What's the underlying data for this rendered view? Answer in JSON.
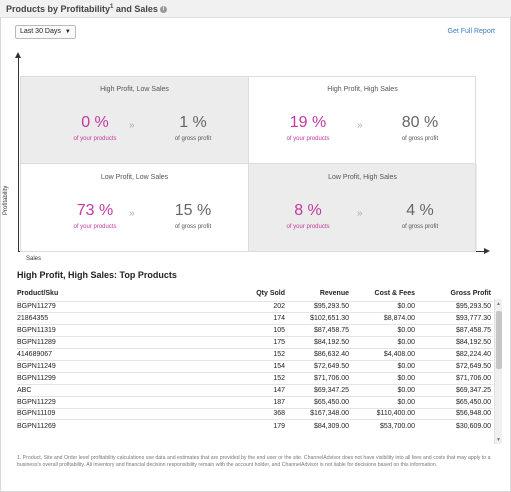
{
  "header": {
    "title_part1": "Products by Profitability",
    "title_sup": "1",
    "title_part2": " and Sales",
    "info_icon": "info-icon"
  },
  "controls": {
    "date_range": "Last 30 Days",
    "full_report_link": "Get Full Report"
  },
  "axes": {
    "y_label": "Profitability",
    "x_label": "Sales"
  },
  "quadrants": [
    {
      "title": "High Profit, Low Sales",
      "products_pct": "0 %",
      "products_label": "of your products",
      "profit_pct": "1 %",
      "profit_label": "of gross profit"
    },
    {
      "title": "High Profit, High Sales",
      "products_pct": "19 %",
      "products_label": "of your products",
      "profit_pct": "80 %",
      "profit_label": "of gross profit"
    },
    {
      "title": "Low Profit, Low Sales",
      "products_pct": "73 %",
      "products_label": "of your products",
      "profit_pct": "15 %",
      "profit_label": "of gross profit"
    },
    {
      "title": "Low Profit, High Sales",
      "products_pct": "8 %",
      "products_label": "of your products",
      "profit_pct": "4 %",
      "profit_label": "of gross profit"
    }
  ],
  "arrow_glyph": "»",
  "top_products": {
    "title": "High Profit, High Sales: Top Products",
    "columns": [
      "Product/Sku",
      "Qty Sold",
      "Revenue",
      "Cost & Fees",
      "Gross Profit"
    ],
    "rows": [
      [
        "BGPN11279",
        "202",
        "$95,293.50",
        "$0.00",
        "$95,293.50"
      ],
      [
        "21864355",
        "174",
        "$102,651.30",
        "$8,874.00",
        "$93,777.30"
      ],
      [
        "BGPN11319",
        "105",
        "$87,458.75",
        "$0.00",
        "$87,458.75"
      ],
      [
        "BGPN11289",
        "175",
        "$84,192.50",
        "$0.00",
        "$84,192.50"
      ],
      [
        "414689067",
        "152",
        "$86,632.40",
        "$4,408.00",
        "$82,224.40"
      ],
      [
        "BGPN11249",
        "154",
        "$72,649.50",
        "$0.00",
        "$72,649.50"
      ],
      [
        "BGPN11299",
        "152",
        "$71,706.00",
        "$0.00",
        "$71,706.00"
      ],
      [
        "ABC",
        "147",
        "$69,347.25",
        "$0.00",
        "$69,347.25"
      ],
      [
        "BGPN11229",
        "187",
        "$65,450.00",
        "$0.00",
        "$65,450.00"
      ],
      [
        "BGPN11109",
        "368",
        "$167,348.00",
        "$110,400.00",
        "$56,948.00"
      ],
      [
        "BGPN11269",
        "179",
        "$84,309.00",
        "$53,700.00",
        "$30,609.00"
      ]
    ]
  },
  "footnote": "1. Product, Site and Order level profitability calculations use data and estimates that are provided by the end user or the site. ChannelAdvisor does not have visibility into all fees and costs that may apply to a business's overall profitability. All inventory and financial decision responsibility remain with the account holder, and ChannelAdvisor is not liable for decisions based on this information."
}
